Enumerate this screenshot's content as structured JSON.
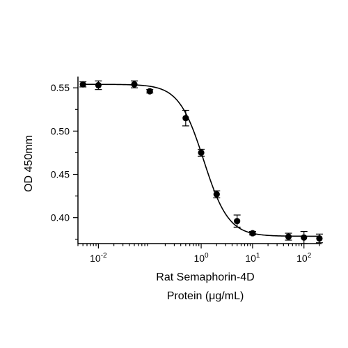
{
  "chart_data": {
    "type": "scatter",
    "x_scale": "log",
    "y_scale": "linear",
    "xlabel_lines": [
      "Rat Semaphorin-4D",
      "Protein (μg/mL)"
    ],
    "ylabel": "OD 450mm",
    "xlim": [
      0.004,
      220
    ],
    "ylim": [
      0.37,
      0.563
    ],
    "x_ticks": [
      {
        "value": 0.01,
        "base": "10",
        "exp": "-2"
      },
      {
        "value": 1,
        "base": "10",
        "exp": "0"
      },
      {
        "value": 10,
        "base": "10",
        "exp": "1"
      },
      {
        "value": 100,
        "base": "10",
        "exp": "2"
      }
    ],
    "x_minor_tick_decades": [
      -3,
      -2,
      -1,
      0,
      1,
      2
    ],
    "y_ticks": [
      {
        "value": 0.4,
        "label": "0.40"
      },
      {
        "value": 0.45,
        "label": "0.45"
      },
      {
        "value": 0.5,
        "label": "0.50"
      },
      {
        "value": 0.55,
        "label": "0.55"
      }
    ],
    "points": [
      {
        "x": 0.005,
        "y": 0.554,
        "err": 0.003
      },
      {
        "x": 0.01,
        "y": 0.553,
        "err": 0.005
      },
      {
        "x": 0.05,
        "y": 0.554,
        "err": 0.004
      },
      {
        "x": 0.1,
        "y": 0.546,
        "err": 0.002
      },
      {
        "x": 0.5,
        "y": 0.515,
        "err": 0.009
      },
      {
        "x": 1,
        "y": 0.475,
        "err": 0.004
      },
      {
        "x": 2,
        "y": 0.427,
        "err": 0.004
      },
      {
        "x": 5,
        "y": 0.396,
        "err": 0.007
      },
      {
        "x": 10,
        "y": 0.382,
        "err": 0.002
      },
      {
        "x": 50,
        "y": 0.378,
        "err": 0.004
      },
      {
        "x": 100,
        "y": 0.377,
        "err": 0.007
      },
      {
        "x": 200,
        "y": 0.376,
        "err": 0.005
      }
    ],
    "fit": {
      "model": "4PL",
      "top": 0.554,
      "bottom": 0.3785,
      "ec50": 1.12,
      "hill": 1.8
    },
    "grid": false,
    "legend": "none"
  }
}
